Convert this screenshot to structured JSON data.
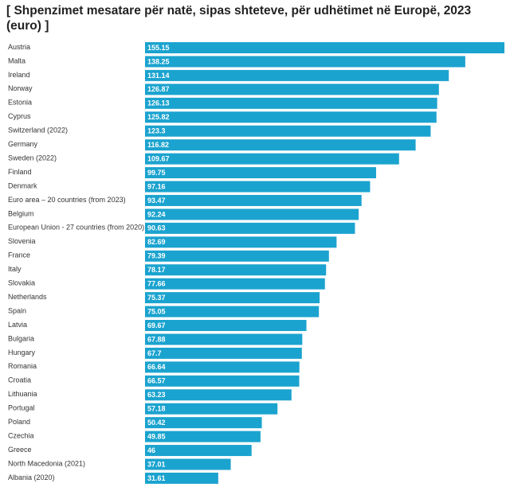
{
  "chart_data": {
    "type": "bar",
    "orientation": "horizontal",
    "title": "[ Shpenzimet mesatare për natë, sipas shteteve, për udhëtimet në Europë, 2023 (euro) ]",
    "categories": [
      "Austria",
      "Malta",
      "Ireland",
      "Norway",
      "Estonia",
      "Cyprus",
      "Switzerland (2022)",
      "Germany",
      "Sweden (2022)",
      "Finland",
      "Denmark",
      "Euro area – 20 countries (from 2023)",
      "Belgium",
      "European Union - 27 countries (from 2020)",
      "Slovenia",
      "France",
      "Italy",
      "Slovakia",
      "Netherlands",
      "Spain",
      "Latvia",
      "Bulgaria",
      "Hungary",
      "Romania",
      "Croatia",
      "Lithuania",
      "Portugal",
      "Poland",
      "Czechia",
      "Greece",
      "North Macedonia (2021)",
      "Albania (2020)"
    ],
    "values": [
      155.15,
      138.25,
      131.14,
      126.87,
      126.13,
      125.82,
      123.3,
      116.82,
      109.67,
      99.75,
      97.16,
      93.47,
      92.24,
      90.63,
      82.69,
      79.39,
      78.17,
      77.66,
      75.37,
      75.05,
      69.67,
      67.88,
      67.7,
      66.64,
      66.57,
      63.23,
      57.18,
      50.42,
      49.85,
      46,
      37.01,
      31.61
    ],
    "value_labels": [
      "155.15",
      "138.25",
      "131.14",
      "126.87",
      "126.13",
      "125.82",
      "123.3",
      "116.82",
      "109.67",
      "99.75",
      "97.16",
      "93.47",
      "92.24",
      "90.63",
      "82.69",
      "79.39",
      "78.17",
      "77.66",
      "75.37",
      "75.05",
      "69.67",
      "67.88",
      "67.7",
      "66.64",
      "66.57",
      "63.23",
      "57.18",
      "50.42",
      "49.85",
      "46",
      "37.01",
      "31.61"
    ],
    "xlim": [
      0,
      155.15
    ],
    "grid": false,
    "legend": "none",
    "bar_color": "#1ba3cf",
    "label_color": "#ffffff"
  }
}
